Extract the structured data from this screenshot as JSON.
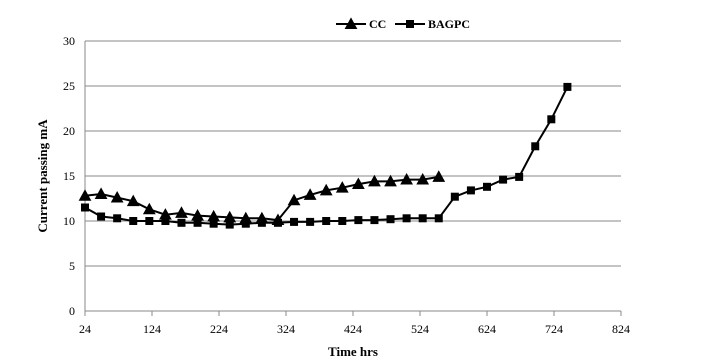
{
  "chart_data": {
    "type": "line",
    "title": "",
    "xlabel": "Time hrs",
    "ylabel": "Current passing mA",
    "xlim": [
      24,
      824
    ],
    "ylim": [
      0,
      30
    ],
    "xticks": [
      24,
      124,
      224,
      324,
      424,
      524,
      624,
      724,
      824
    ],
    "yticks": [
      0,
      5,
      10,
      15,
      20,
      25,
      30
    ],
    "grid": true,
    "legend_position": "top-center",
    "series": [
      {
        "name": "CC",
        "marker": "triangle",
        "color": "#000000",
        "x": [
          24,
          48,
          72,
          96,
          120,
          144,
          168,
          192,
          216,
          240,
          264,
          288,
          312,
          336,
          360,
          384,
          408,
          432,
          456,
          480,
          504,
          528,
          552
        ],
        "y": [
          12.8,
          13.0,
          12.6,
          12.2,
          11.3,
          10.7,
          10.9,
          10.6,
          10.5,
          10.4,
          10.3,
          10.3,
          10.1,
          12.3,
          12.9,
          13.4,
          13.7,
          14.1,
          14.4,
          14.4,
          14.6,
          14.6,
          14.9
        ]
      },
      {
        "name": "BAGPC",
        "marker": "square",
        "color": "#000000",
        "x": [
          24,
          48,
          72,
          96,
          120,
          144,
          168,
          192,
          216,
          240,
          264,
          288,
          312,
          336,
          360,
          384,
          408,
          432,
          456,
          480,
          504,
          528,
          552,
          576,
          600,
          624,
          648,
          672,
          696,
          720,
          744
        ],
        "y": [
          11.5,
          10.5,
          10.3,
          10.0,
          10.0,
          10.0,
          9.8,
          9.8,
          9.7,
          9.6,
          9.7,
          9.8,
          9.8,
          9.9,
          9.9,
          10.0,
          10.0,
          10.1,
          10.1,
          10.2,
          10.3,
          10.3,
          10.3,
          12.7,
          13.4,
          13.8,
          14.6,
          14.9,
          18.3,
          21.3,
          24.9
        ]
      }
    ]
  }
}
